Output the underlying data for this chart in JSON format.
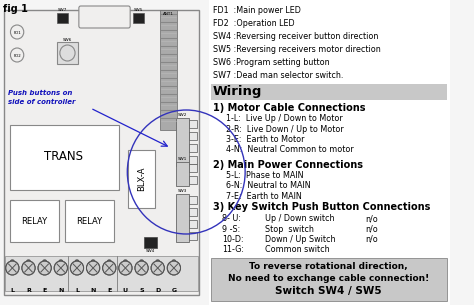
{
  "title": "fig 1",
  "right_panel": {
    "labels_top": [
      "FD1  :Main power LED",
      "FD2  :Operation LED",
      "SW4 :Reversing receiver button direction",
      "SW5 :Reversing receivers motor direction",
      "SW6 :Program setting button",
      "SW7 :Dead man selector switch."
    ],
    "wiring_title": "Wiring",
    "section1_title": "1) Motor Cable Connections",
    "section1_items": [
      "1-L:  Live Up / Down to Motor",
      "2-R:  Live Down / Up to Motor",
      "3-E:  Earth to Motor",
      "4-N:  Neutral Common to motor"
    ],
    "section2_title": "2) Main Power Connections",
    "section2_items": [
      "5-L:  Phase to MAIN",
      "6-N:  Neutral to MAIN",
      "7-E:  Earth to MAIN"
    ],
    "section3_title": "3) Key Switch Push Button Connections",
    "section3_col1": [
      "8- U:",
      "9 -S:",
      "10-D:",
      "11-G:"
    ],
    "section3_col2": [
      "Up / Down switch",
      "Stop  switch",
      "Down / Up Switch",
      "Common switch"
    ],
    "section3_col3": [
      "n/o",
      "n/o",
      "n/o",
      ""
    ],
    "note_line1": "To reverse rotational direction,",
    "note_line2": "No need to exchange cable connection!",
    "note_line3": "Switch SW4 / SW5"
  },
  "left_panel": {
    "trans_label": "TRANS",
    "blx_label": "BLX-A",
    "relay_label": "RELAY",
    "push_label": "Push buttons on\nside of controller",
    "terminal_labels": [
      "L",
      "R",
      "E",
      "N",
      "L",
      "N",
      "E",
      "U",
      "S",
      "D",
      "G"
    ],
    "sw_labels": [
      "SW2",
      "SW1",
      "SW3"
    ]
  },
  "bg_color": "#f5f5f5",
  "controller_bg": "#f0efee",
  "wiring_gray": "#c8c8c8",
  "note_gray": "#c8c8c8"
}
